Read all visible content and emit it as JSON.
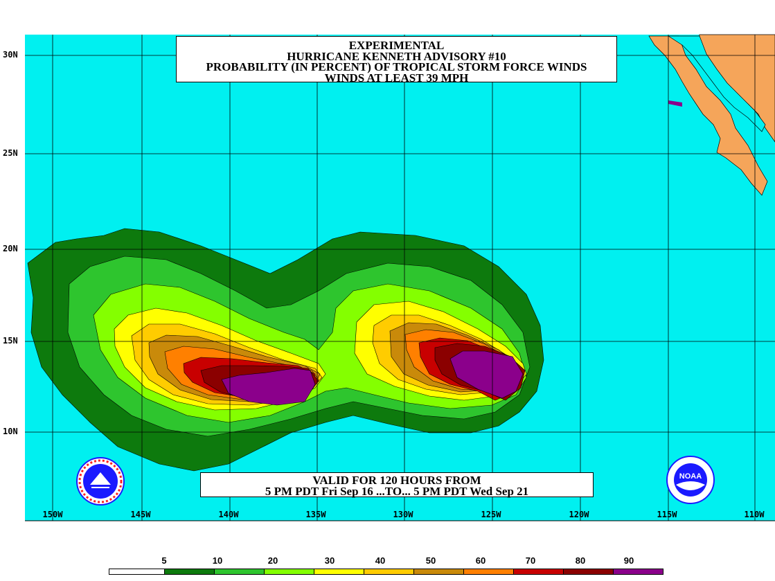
{
  "title": {
    "line1": "EXPERIMENTAL",
    "line2": "HURRICANE KENNETH ADVISORY #10",
    "line3": "PROBABILITY (IN PERCENT) OF TROPICAL STORM FORCE WINDS",
    "line4": "WINDS AT LEAST 39 MPH"
  },
  "valid": {
    "line1": "VALID FOR 120 HOURS FROM",
    "line2": "5 PM PDT Fri Sep 16 ...TO... 5 PM PDT Wed Sep 21"
  },
  "lat_labels": [
    "30N",
    "25N",
    "20N",
    "15N",
    "10N"
  ],
  "lon_labels": [
    "150W",
    "145W",
    "140W",
    "135W",
    "130W",
    "125W",
    "120W",
    "115W",
    "110W"
  ],
  "legend": {
    "values": [
      "5",
      "10",
      "20",
      "30",
      "40",
      "50",
      "60",
      "70",
      "80",
      "90"
    ],
    "colors": [
      "#ffffff",
      "#0d7a0d",
      "#2ec52e",
      "#84ff00",
      "#ffff00",
      "#ffcc00",
      "#c98a0a",
      "#ff8000",
      "#c80000",
      "#8b0000",
      "#8b008b"
    ]
  },
  "colors": {
    "ocean": "#00f0f0",
    "land": "#f5a55a"
  },
  "logos": {
    "left": "nws-logo",
    "right": "noaa-logo",
    "right_text": "NOAA"
  }
}
